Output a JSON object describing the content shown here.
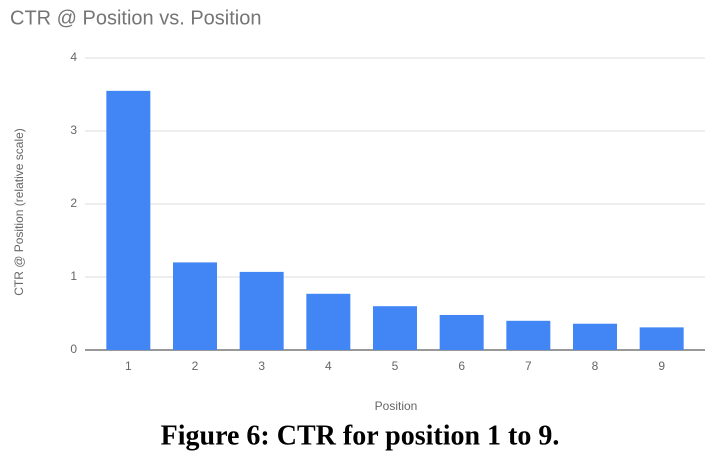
{
  "chart_data": {
    "type": "bar",
    "title": "CTR @ Position vs. Position",
    "x_label": "Position",
    "y_label": "CTR @ Position (relative scale)",
    "categories": [
      "1",
      "2",
      "3",
      "4",
      "5",
      "6",
      "7",
      "8",
      "9"
    ],
    "values": [
      3.55,
      1.2,
      1.07,
      0.77,
      0.6,
      0.48,
      0.4,
      0.36,
      0.31
    ],
    "color": "#4285f4",
    "ylim": [
      0,
      4
    ],
    "yticks": [
      0,
      1,
      2,
      3,
      4
    ],
    "grid": true,
    "caption": "Figure 6: CTR for position 1 to 9."
  }
}
